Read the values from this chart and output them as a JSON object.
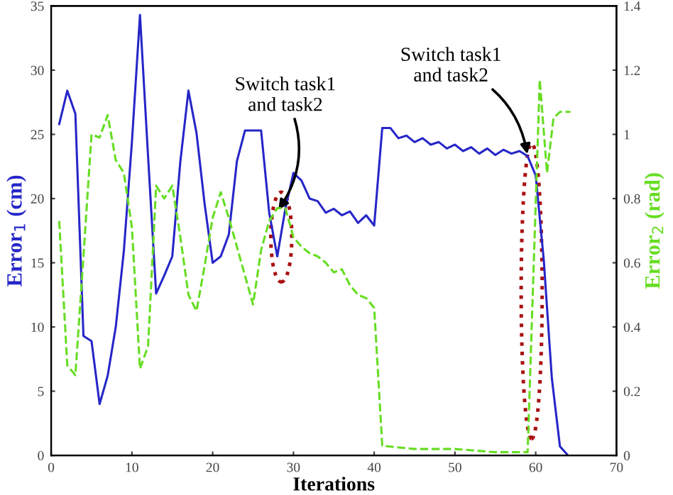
{
  "chart_data": {
    "type": "line",
    "xlabel": "Iterations",
    "ylabel": "Error$_{1}$ (cm)",
    "y2label": "Error$_{2}$ (rad)",
    "xlim": [
      0,
      70
    ],
    "xticks": [
      0,
      10,
      20,
      30,
      40,
      50,
      60,
      70
    ],
    "ylim": [
      0,
      35
    ],
    "yticks": [
      0,
      5,
      10,
      15,
      20,
      25,
      30,
      35
    ],
    "y2lim": [
      0,
      1.4
    ],
    "y2ticks": [
      0,
      0.2,
      0.4,
      0.6,
      0.8,
      1,
      1.2,
      1.4
    ],
    "grid": false,
    "legend": false,
    "marker": "none",
    "series": [
      {
        "color": "#2626c8",
        "line_style": "solid",
        "x": [
          1,
          2,
          3,
          4,
          5,
          6,
          7,
          8,
          9,
          10,
          11,
          12,
          13,
          14,
          15,
          16,
          17,
          18,
          19,
          20,
          21,
          22,
          23,
          24,
          25,
          26,
          27,
          28,
          29,
          30,
          31,
          32,
          33,
          34,
          35,
          36,
          37,
          38,
          39,
          40,
          41,
          42,
          43,
          44,
          45,
          46,
          47,
          48,
          49,
          50,
          51,
          52,
          53,
          54,
          55,
          56,
          57,
          58,
          59,
          60,
          61,
          62,
          63,
          64
        ],
        "values": [
          25.8,
          28.4,
          26.6,
          9.3,
          8.9,
          4,
          6.2,
          10,
          15.9,
          24.4,
          34.3,
          23.3,
          12.6,
          14,
          15.5,
          22.9,
          28.4,
          25.1,
          19.6,
          15,
          15.5,
          17.2,
          22.9,
          25.3,
          25.3,
          25.3,
          18.9,
          15.5,
          19.2,
          22,
          21.4,
          20,
          19.8,
          18.9,
          19.2,
          18.7,
          19,
          18.1,
          18.7,
          17.9,
          25.5,
          25.5,
          24.7,
          24.9,
          24.4,
          24.7,
          24.2,
          24.4,
          23.9,
          24.2,
          23.7,
          24,
          23.5,
          23.9,
          23.4,
          23.8,
          23.5,
          23.7,
          23.3,
          21.8,
          15.2,
          6,
          0.7,
          0
        ]
      },
      {
        "color": "#66dd22",
        "line_style": "dashed",
        "axis": "y2",
        "x": [
          1,
          2,
          3,
          4,
          5,
          6,
          7,
          8,
          9,
          10,
          11,
          12,
          13,
          14,
          15,
          16,
          17,
          18,
          19,
          20,
          21,
          22,
          23,
          24,
          25,
          26,
          27,
          28,
          29,
          30,
          31,
          32,
          33,
          34,
          35,
          36,
          37,
          38,
          39,
          40,
          41,
          45,
          50,
          55,
          59,
          60.5,
          61.4,
          62.2,
          63,
          64.3
        ],
        "values": [
          0.73,
          0.28,
          0.25,
          0.62,
          1.0,
          0.99,
          1.06,
          0.92,
          0.88,
          0.71,
          0.27,
          0.34,
          0.84,
          0.8,
          0.84,
          0.68,
          0.5,
          0.45,
          0.59,
          0.74,
          0.82,
          0.74,
          0.65,
          0.56,
          0.47,
          0.64,
          0.73,
          0.77,
          0.77,
          0.68,
          0.65,
          0.63,
          0.62,
          0.6,
          0.57,
          0.58,
          0.53,
          0.5,
          0.49,
          0.46,
          0.03,
          0.02,
          0.02,
          0.01,
          0.01,
          1.17,
          0.88,
          1.05,
          1.07,
          1.07
        ]
      }
    ],
    "annotations": [
      {
        "text": "Switch task1\nand task2",
        "x": 28,
        "y": 19
      },
      {
        "text": "Switch task1\nand task2",
        "x": 59,
        "y": 23.3
      }
    ]
  }
}
